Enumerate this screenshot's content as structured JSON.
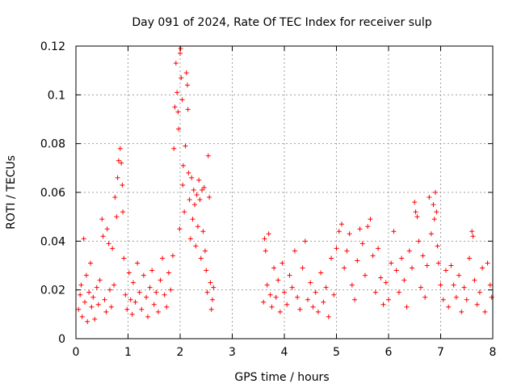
{
  "chart_data": {
    "type": "scatter",
    "title": "Day 091 of 2024, Rate Of TEC Index for receiver sulp",
    "xlabel": "GPS time / hours",
    "ylabel": "ROTI / TECUs",
    "xlim": [
      0,
      8
    ],
    "ylim": [
      0,
      0.12
    ],
    "xticks": [
      0,
      1,
      2,
      3,
      4,
      5,
      6,
      7,
      8
    ],
    "yticks": [
      0,
      0.02,
      0.04,
      0.06,
      0.08,
      0.1,
      0.12
    ],
    "xtick_labels": [
      "0",
      "1",
      "2",
      "3",
      "4",
      "5",
      "6",
      "7",
      "8"
    ],
    "ytick_labels": [
      "0",
      "0.02",
      "0.04",
      "0.06",
      "0.08",
      "0.1",
      "0.12"
    ],
    "grid": true,
    "marker": "+",
    "marker_color": "#ff0000",
    "series": [
      {
        "name": "ROTI",
        "points": [
          [
            0.05,
            0.012
          ],
          [
            0.08,
            0.018
          ],
          [
            0.1,
            0.022
          ],
          [
            0.12,
            0.009
          ],
          [
            0.15,
            0.041
          ],
          [
            0.17,
            0.015
          ],
          [
            0.2,
            0.026
          ],
          [
            0.22,
            0.007
          ],
          [
            0.25,
            0.019
          ],
          [
            0.28,
            0.031
          ],
          [
            0.3,
            0.013
          ],
          [
            0.33,
            0.017
          ],
          [
            0.36,
            0.008
          ],
          [
            0.4,
            0.021
          ],
          [
            0.43,
            0.014
          ],
          [
            0.46,
            0.024
          ],
          [
            0.5,
            0.049
          ],
          [
            0.52,
            0.042
          ],
          [
            0.55,
            0.016
          ],
          [
            0.58,
            0.011
          ],
          [
            0.6,
            0.045
          ],
          [
            0.63,
            0.039
          ],
          [
            0.65,
            0.02
          ],
          [
            0.68,
            0.013
          ],
          [
            0.7,
            0.037
          ],
          [
            0.73,
            0.022
          ],
          [
            0.75,
            0.058
          ],
          [
            0.78,
            0.05
          ],
          [
            0.8,
            0.066
          ],
          [
            0.82,
            0.073
          ],
          [
            0.85,
            0.078
          ],
          [
            0.87,
            0.072
          ],
          [
            0.89,
            0.063
          ],
          [
            0.9,
            0.052
          ],
          [
            0.92,
            0.033
          ],
          [
            0.95,
            0.018
          ],
          [
            0.98,
            0.012
          ],
          [
            1.02,
            0.027
          ],
          [
            1.05,
            0.016
          ],
          [
            1.08,
            0.01
          ],
          [
            1.1,
            0.023
          ],
          [
            1.14,
            0.015
          ],
          [
            1.18,
            0.031
          ],
          [
            1.22,
            0.019
          ],
          [
            1.26,
            0.012
          ],
          [
            1.3,
            0.026
          ],
          [
            1.35,
            0.017
          ],
          [
            1.38,
            0.009
          ],
          [
            1.42,
            0.021
          ],
          [
            1.46,
            0.028
          ],
          [
            1.5,
            0.014
          ],
          [
            1.54,
            0.019
          ],
          [
            1.58,
            0.011
          ],
          [
            1.62,
            0.024
          ],
          [
            1.66,
            0.033
          ],
          [
            1.7,
            0.018
          ],
          [
            1.74,
            0.013
          ],
          [
            1.78,
            0.027
          ],
          [
            1.82,
            0.02
          ],
          [
            1.86,
            0.034
          ],
          [
            1.88,
            0.078
          ],
          [
            1.9,
            0.095
          ],
          [
            1.92,
            0.113
          ],
          [
            1.94,
            0.101
          ],
          [
            1.96,
            0.093
          ],
          [
            1.97,
            0.086
          ],
          [
            1.99,
            0.045
          ],
          [
            2.0,
            0.117
          ],
          [
            2.01,
            0.119
          ],
          [
            2.02,
            0.107
          ],
          [
            2.04,
            0.098
          ],
          [
            2.05,
            0.063
          ],
          [
            2.06,
            0.071
          ],
          [
            2.08,
            0.052
          ],
          [
            2.1,
            0.079
          ],
          [
            2.12,
            0.109
          ],
          [
            2.14,
            0.104
          ],
          [
            2.15,
            0.094
          ],
          [
            2.16,
            0.068
          ],
          [
            2.18,
            0.057
          ],
          [
            2.2,
            0.041
          ],
          [
            2.22,
            0.066
          ],
          [
            2.24,
            0.049
          ],
          [
            2.26,
            0.061
          ],
          [
            2.28,
            0.055
          ],
          [
            2.3,
            0.038
          ],
          [
            2.32,
            0.059
          ],
          [
            2.34,
            0.046
          ],
          [
            2.36,
            0.065
          ],
          [
            2.38,
            0.057
          ],
          [
            2.4,
            0.033
          ],
          [
            2.42,
            0.061
          ],
          [
            2.44,
            0.044
          ],
          [
            2.46,
            0.062
          ],
          [
            2.48,
            0.036
          ],
          [
            2.5,
            0.028
          ],
          [
            2.52,
            0.019
          ],
          [
            2.54,
            0.075
          ],
          [
            2.56,
            0.058
          ],
          [
            2.58,
            0.023
          ],
          [
            2.6,
            0.012
          ],
          [
            2.62,
            0.016
          ],
          [
            2.64,
            0.021
          ],
          [
            3.6,
            0.015
          ],
          [
            3.62,
            0.041
          ],
          [
            3.64,
            0.036
          ],
          [
            3.67,
            0.022
          ],
          [
            3.7,
            0.043
          ],
          [
            3.73,
            0.018
          ],
          [
            3.76,
            0.013
          ],
          [
            3.8,
            0.029
          ],
          [
            3.84,
            0.017
          ],
          [
            3.88,
            0.024
          ],
          [
            3.92,
            0.011
          ],
          [
            3.96,
            0.031
          ],
          [
            4.0,
            0.019
          ],
          [
            4.05,
            0.014
          ],
          [
            4.1,
            0.026
          ],
          [
            4.15,
            0.021
          ],
          [
            4.2,
            0.036
          ],
          [
            4.25,
            0.017
          ],
          [
            4.3,
            0.012
          ],
          [
            4.35,
            0.029
          ],
          [
            4.4,
            0.04
          ],
          [
            4.45,
            0.016
          ],
          [
            4.5,
            0.023
          ],
          [
            4.55,
            0.013
          ],
          [
            4.6,
            0.019
          ],
          [
            4.65,
            0.011
          ],
          [
            4.7,
            0.027
          ],
          [
            4.75,
            0.015
          ],
          [
            4.8,
            0.021
          ],
          [
            4.85,
            0.009
          ],
          [
            4.9,
            0.033
          ],
          [
            4.95,
            0.018
          ],
          [
            5.0,
            0.037
          ],
          [
            5.05,
            0.044
          ],
          [
            5.1,
            0.047
          ],
          [
            5.15,
            0.029
          ],
          [
            5.2,
            0.036
          ],
          [
            5.25,
            0.043
          ],
          [
            5.3,
            0.022
          ],
          [
            5.35,
            0.016
          ],
          [
            5.4,
            0.032
          ],
          [
            5.45,
            0.045
          ],
          [
            5.5,
            0.039
          ],
          [
            5.55,
            0.026
          ],
          [
            5.6,
            0.046
          ],
          [
            5.65,
            0.049
          ],
          [
            5.7,
            0.034
          ],
          [
            5.75,
            0.019
          ],
          [
            5.8,
            0.037
          ],
          [
            5.85,
            0.025
          ],
          [
            5.9,
            0.014
          ],
          [
            5.95,
            0.023
          ],
          [
            6.0,
            0.016
          ],
          [
            6.05,
            0.031
          ],
          [
            6.1,
            0.044
          ],
          [
            6.15,
            0.028
          ],
          [
            6.2,
            0.019
          ],
          [
            6.25,
            0.033
          ],
          [
            6.3,
            0.024
          ],
          [
            6.35,
            0.013
          ],
          [
            6.4,
            0.036
          ],
          [
            6.45,
            0.029
          ],
          [
            6.5,
            0.056
          ],
          [
            6.52,
            0.052
          ],
          [
            6.55,
            0.05
          ],
          [
            6.58,
            0.04
          ],
          [
            6.62,
            0.021
          ],
          [
            6.66,
            0.034
          ],
          [
            6.7,
            0.017
          ],
          [
            6.74,
            0.03
          ],
          [
            6.78,
            0.058
          ],
          [
            6.82,
            0.043
          ],
          [
            6.86,
            0.055
          ],
          [
            6.88,
            0.049
          ],
          [
            6.9,
            0.06
          ],
          [
            6.92,
            0.052
          ],
          [
            6.94,
            0.038
          ],
          [
            6.96,
            0.031
          ],
          [
            7.0,
            0.022
          ],
          [
            7.05,
            0.016
          ],
          [
            7.1,
            0.028
          ],
          [
            7.15,
            0.013
          ],
          [
            7.2,
            0.03
          ],
          [
            7.25,
            0.022
          ],
          [
            7.3,
            0.017
          ],
          [
            7.35,
            0.026
          ],
          [
            7.4,
            0.011
          ],
          [
            7.45,
            0.021
          ],
          [
            7.5,
            0.016
          ],
          [
            7.55,
            0.033
          ],
          [
            7.6,
            0.044
          ],
          [
            7.62,
            0.042
          ],
          [
            7.65,
            0.024
          ],
          [
            7.7,
            0.014
          ],
          [
            7.75,
            0.019
          ],
          [
            7.8,
            0.029
          ],
          [
            7.85,
            0.011
          ],
          [
            7.9,
            0.031
          ],
          [
            7.95,
            0.022
          ],
          [
            7.98,
            0.017
          ]
        ]
      }
    ]
  }
}
